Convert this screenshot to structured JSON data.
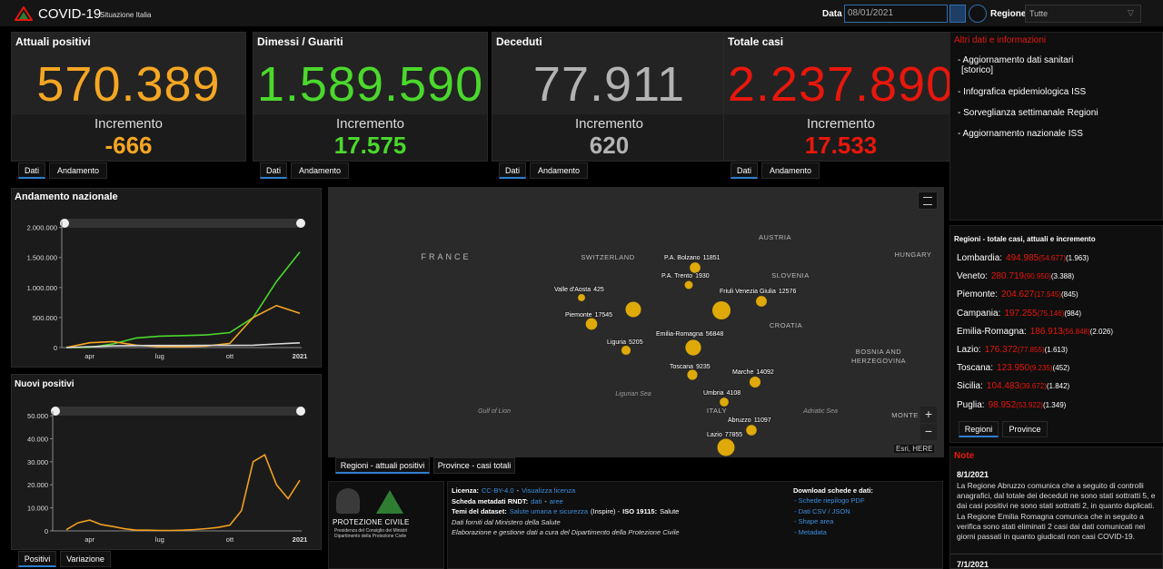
{
  "header": {
    "title": "COVID-19",
    "subtitle": "Situazione Italia",
    "date_label": "Data",
    "date_value": "08/01/2021",
    "region_label": "Regione",
    "region_value": "Tutte"
  },
  "cards": [
    {
      "title": "Attuali positivi",
      "value": "570.389",
      "increment_label": "Incremento",
      "increment": "-666",
      "color": "#f5a623",
      "tabs": [
        "Dati",
        "Andamento"
      ]
    },
    {
      "title": "Dimessi / Guariti",
      "value": "1.589.590",
      "increment_label": "Incremento",
      "increment": "17.575",
      "color": "#4bd82d",
      "tabs": [
        "Dati",
        "Andamento"
      ]
    },
    {
      "title": "Deceduti",
      "value": "77.911",
      "increment_label": "Incremento",
      "increment": "620",
      "color": "#b3b3b3",
      "tabs": [
        "Dati",
        "Andamento"
      ]
    },
    {
      "title": "Totale casi",
      "value": "2.237.890",
      "increment_label": "Incremento",
      "increment": "17.533",
      "color": "#e8170c",
      "tabs": [
        "Dati",
        "Andamento"
      ]
    }
  ],
  "info": {
    "title": "Altri dati e informazioni",
    "links": [
      [
        "- Aggiornamento dati sanitari",
        "[storico]"
      ],
      [
        "- Infografica epidemiologica ISS"
      ],
      [
        "- Sorveglianza settimanale Regioni"
      ],
      [
        "- Aggiornamento nazionale ISS"
      ]
    ]
  },
  "regions": {
    "title": "Regioni - totale casi, attuali e incremento",
    "rows": [
      {
        "name": "Lombardia:",
        "totale": "494.985",
        "attuali": "(54.677)",
        "incremento": "(1.963)"
      },
      {
        "name": "Veneto:",
        "totale": "280.719",
        "attuali": "(90.950)",
        "incremento": "(3.388)"
      },
      {
        "name": "Piemonte:",
        "totale": "204.627",
        "attuali": "(17.545)",
        "incremento": "(845)"
      },
      {
        "name": "Campania:",
        "totale": "197.255",
        "attuali": "(75.146)",
        "incremento": "(984)"
      },
      {
        "name": "Emilia-Romagna:",
        "totale": "186.913",
        "attuali": "(56.848)",
        "incremento": "(2.026)"
      },
      {
        "name": "Lazio:",
        "totale": "176.372",
        "attuali": "(77.855)",
        "incremento": "(1.613)"
      },
      {
        "name": "Toscana:",
        "totale": "123.950",
        "attuali": "(9.235)",
        "incremento": "(452)"
      },
      {
        "name": "Sicilia:",
        "totale": "104.483",
        "attuali": "(39.672)",
        "incremento": "(1.842)"
      },
      {
        "name": "Puglia:",
        "totale": "98.952",
        "attuali": "(53.922)",
        "incremento": "(1.349)"
      }
    ],
    "tabs": [
      "Regioni",
      "Province"
    ]
  },
  "notes": {
    "title": "Note",
    "entries": [
      {
        "date": "8/1/2021",
        "text": "La Regione Abruzzo comunica che a seguito di controlli anagrafici, dal totale dei deceduti ne sono stati sottratti 5, e dai casi positivi ne sono stati sottratti 2, in quanto duplicati. La Regione Emilia Romagna comunica che in seguito a verifica sono stati eliminati 2 casi dai dati comunicati nei giorni passati in quanto giudicati non casi COVID-19."
      },
      {
        "date": "7/1/2021"
      }
    ]
  },
  "chart_data": [
    {
      "type": "line",
      "title": "Andamento nazionale",
      "categories": [
        null,
        "apr",
        null,
        null,
        "lug",
        null,
        null,
        "ott",
        null,
        null,
        "2021"
      ],
      "series": [
        {
          "color": "#4bd82d",
          "values": [
            0,
            3000,
            60000,
            160000,
            190000,
            200000,
            210000,
            250000,
            500000,
            1100000,
            1589590
          ]
        },
        {
          "color": "#f5a623",
          "values": [
            1500,
            80000,
            100000,
            40000,
            15000,
            13000,
            25000,
            70000,
            500000,
            700000,
            570389
          ]
        },
        {
          "color": "#d9d9d9",
          "values": [
            50,
            13000,
            28000,
            33000,
            35000,
            35000,
            36000,
            36000,
            40000,
            60000,
            77911
          ]
        }
      ],
      "ylim": [
        0,
        2100000
      ],
      "yticks": [
        0,
        {
          "value": 500000,
          "label": "500.000"
        },
        {
          "value": 1000000,
          "label": "1.000.000"
        },
        {
          "value": 1500000,
          "label": "1.500.000"
        },
        {
          "value": 2000000,
          "label": "2.000.000"
        }
      ]
    },
    {
      "type": "line",
      "title": "Nuovi positivi",
      "categories": [
        null,
        null,
        "apr",
        null,
        null,
        null,
        null,
        null,
        "lug",
        null,
        null,
        null,
        null,
        null,
        "ott",
        null,
        null,
        null,
        null,
        null,
        "2021"
      ],
      "series": [
        {
          "color": "#f0a020",
          "values": [
            500,
            3500,
            4700,
            2700,
            1900,
            900,
            300,
            300,
            200,
            200,
            300,
            600,
            1000,
            1500,
            2500,
            8800,
            30000,
            33000,
            20000,
            14000,
            22000
          ]
        }
      ],
      "ylim": [
        0,
        52000
      ],
      "yticks": [
        0,
        {
          "value": 10000,
          "label": "10.000"
        },
        {
          "value": 20000,
          "label": "20.000"
        },
        {
          "value": 30000,
          "label": "30.000"
        },
        {
          "value": 40000,
          "label": "40.000"
        },
        {
          "value": 50000,
          "label": "50.000"
        }
      ],
      "tabs": [
        "Positivi",
        "Variazione"
      ]
    }
  ],
  "map": {
    "labels": [
      "FRANCE",
      "SWITZERLAND",
      "AUSTRIA",
      "SLOVENIA",
      "HUNGARY",
      "CROATIA",
      "BOSNIA AND",
      "HERZEGOVINA",
      "ITALY",
      "MONTE",
      "Gulf of Lion",
      "Ligurian Sea",
      "Adriatic Sea"
    ],
    "points": [
      {
        "name": "Valle d'Aosta",
        "value": 425
      },
      {
        "name": "Piemonte",
        "value": 17545
      },
      {
        "value": 54677
      },
      {
        "name": "P.A. Bolzano",
        "value": 11851
      },
      {
        "name": "P.A. Trento",
        "value": 1930
      },
      {
        "value": 90950
      },
      {
        "name": "Friuli Venezia Giulia",
        "value": 12576
      },
      {
        "name": "Liguria",
        "value": 5205
      },
      {
        "name": "Emilia-Romagna",
        "value": 56848
      },
      {
        "name": "Toscana",
        "value": 9235
      },
      {
        "name": "Marche",
        "value": 14092
      },
      {
        "name": "Umbria",
        "value": 4108
      },
      {
        "name": "Abruzzo",
        "value": 11097
      },
      {
        "name": "Lazio",
        "value": 77855
      }
    ],
    "point_color": "#f2b705",
    "attribution": "Esri, HERE",
    "tabs": [
      "Regioni - attuali positivi",
      "Province - casi totali"
    ]
  },
  "footer": {
    "logo": [
      "PROTEZIONE CIVILE",
      "Presidenza del Consiglio dei Ministri",
      "Dipartimento della Protezione Civile"
    ],
    "license": [
      [
        {
          "text": "Licenza:",
          "bold": true
        },
        {
          "text": "CC-BY-4.0",
          "link": true
        },
        {
          "text": "-"
        },
        {
          "text": "Visualizza licenza",
          "link": true
        }
      ],
      [
        {
          "text": "Scheda metadati RNDT:",
          "bold": true
        },
        {
          "text": "dati",
          "link": true
        },
        {
          "text": "-"
        },
        {
          "text": "aree",
          "link": true
        }
      ],
      [
        {
          "text": "Temi del dataset:",
          "bold": true
        },
        {
          "text": "Salute umana e sicurezza",
          "link": true
        },
        {
          "text": "(Inspire) -"
        },
        {
          "text": "ISO 19115:",
          "bold": true
        },
        {
          "text": "Salute"
        }
      ],
      [
        {
          "text": "Dati forniti dal Ministero della Salute",
          "italic": true
        }
      ],
      [
        {
          "text": "Elaborazione e gestione dati a cura del Dipartimento della Protezione Civile",
          "italic": true
        }
      ]
    ],
    "download_title": "Download schede e dati:",
    "downloads": [
      "- Schede riepilogo PDF",
      "- Dati CSV / JSON",
      "- Shape area",
      "- Metadata"
    ]
  }
}
